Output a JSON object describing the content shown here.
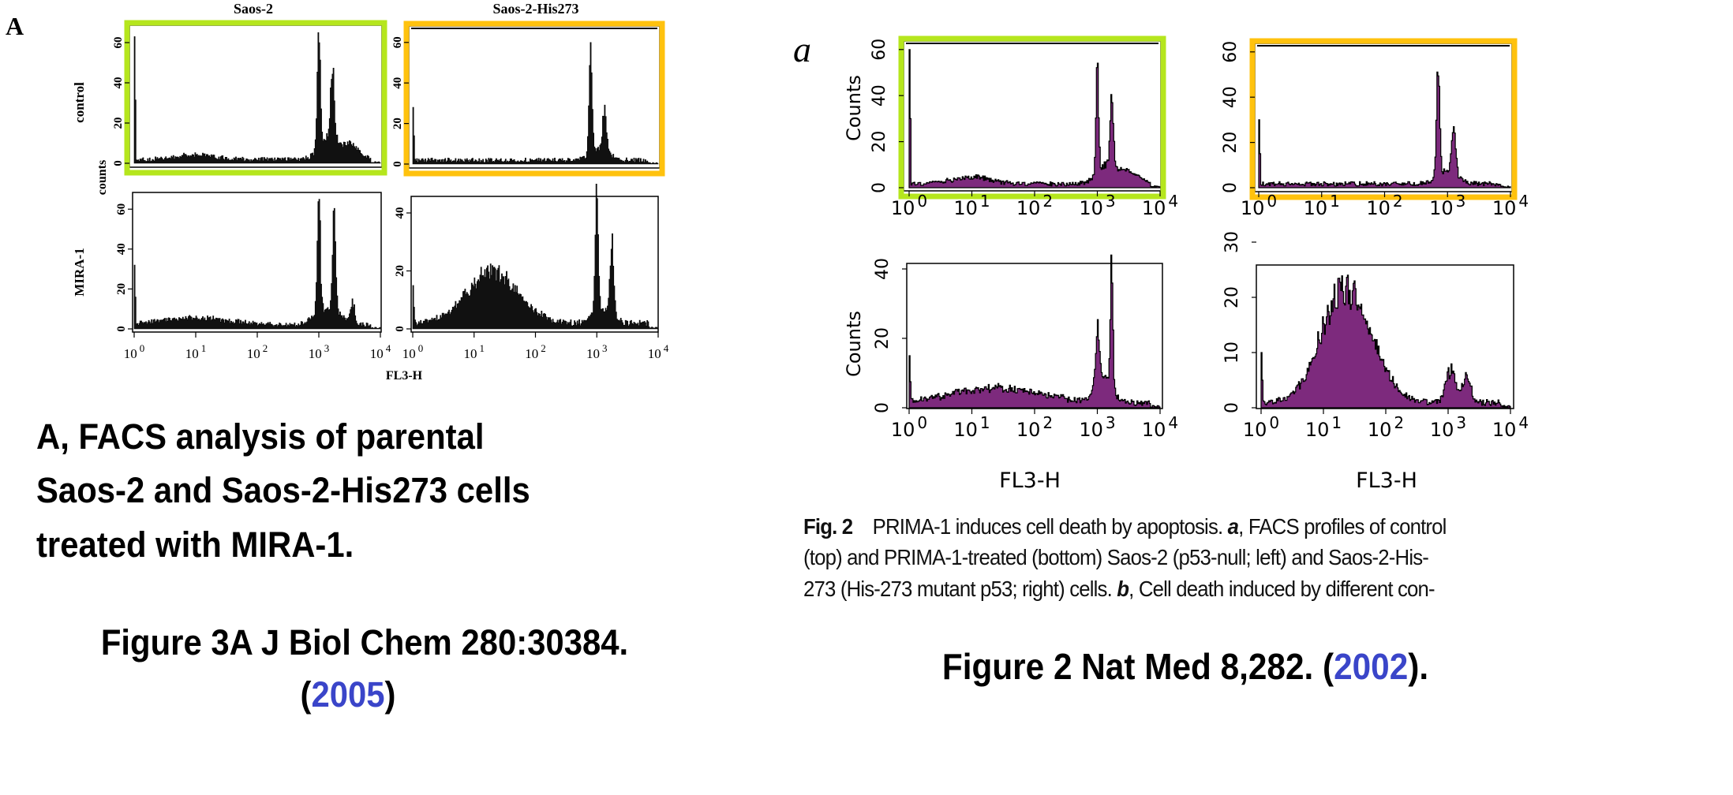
{
  "left_figure": {
    "panel_letter": "A",
    "column_titles": [
      "Saos-2",
      "Saos-2-His273"
    ],
    "row_labels": [
      "control",
      "MIRA-1"
    ],
    "y_axis_label": "counts",
    "x_axis_label": "FL3-H",
    "caption_lines": [
      "A, FACS analysis of parental",
      "Saos-2 and Saos-2-His273 cells",
      "treated with MIRA-1."
    ],
    "reference": {
      "text": "Figure 3A J Biol Chem 280:30384.",
      "open": "(",
      "year": "2005",
      "close": ")"
    }
  },
  "right_figure": {
    "panel_letter": "a",
    "y_axis_label": "Counts",
    "x_axis_label": "FL3-H",
    "caption": {
      "fig_label": "Fig. 2",
      "line1_rest": "PRIMA-1 induces cell death by apoptosis. ",
      "a_label": "a",
      "line1_tail": ", FACS profiles of control",
      "line2": "(top) and PRIMA-1-treated (bottom) Saos-2 (p53-null; left) and Saos-2-His-",
      "line3_head": "273 (His-273 mutant p53; right) cells. ",
      "b_label": "b",
      "line3_tail": ", Cell death induced by different con-"
    },
    "reference": {
      "text": "Figure 2 Nat Med 8,282. (",
      "year": "2002",
      "close": ")."
    }
  },
  "colors": {
    "control_saos2_frame": "#b5e61d",
    "control_his273_frame": "#ffc20e",
    "jbc_fill": "#111111",
    "natmed_fill": "#7d2a7d",
    "year_link": "#3a45c9"
  },
  "chart_data": [
    {
      "id": "A-tl",
      "type": "histogram",
      "title": "Saos-2 control",
      "xscale": "log",
      "xlim": [
        1,
        10000
      ],
      "x_ticks": [
        "0",
        "1",
        "2",
        "3",
        "4"
      ],
      "x_tick_base": "10",
      "show_x_ticks": false,
      "ylim": [
        0,
        65
      ],
      "y_ticks": [
        0,
        20,
        40,
        60
      ],
      "baseline": 2,
      "left_spike": 63,
      "peaks": [
        {
          "log_x": 3.0,
          "count": 60,
          "width": 0.025
        },
        {
          "log_x": 3.22,
          "count": 36,
          "width": 0.03
        },
        {
          "log_x": 3.15,
          "count": 11,
          "width": 0.15
        },
        {
          "log_x": 3.5,
          "count": 7,
          "width": 0.15
        },
        {
          "log_x": 1.0,
          "count": 2.5,
          "width": 0.3
        }
      ]
    },
    {
      "id": "A-tr",
      "type": "histogram",
      "title": "Saos-2-His273 control",
      "xscale": "log",
      "xlim": [
        1,
        10000
      ],
      "x_ticks": [
        "0",
        "1",
        "2",
        "3",
        "4"
      ],
      "x_tick_base": "10",
      "show_x_ticks": false,
      "ylim": [
        0,
        60
      ],
      "y_ticks": [
        0,
        20,
        40,
        60
      ],
      "baseline": 2,
      "left_spike": 28,
      "peaks": [
        {
          "log_x": 2.9,
          "count": 52,
          "width": 0.025
        },
        {
          "log_x": 3.13,
          "count": 21,
          "width": 0.03
        },
        {
          "log_x": 3.05,
          "count": 6,
          "width": 0.15
        }
      ]
    },
    {
      "id": "A-bl",
      "type": "histogram",
      "title": "Saos-2 MIRA-1",
      "xscale": "log",
      "xlim": [
        1,
        10000
      ],
      "x_ticks": [
        "0",
        "1",
        "2",
        "3",
        "4"
      ],
      "x_tick_base": "10",
      "show_x_ticks": true,
      "ylim": [
        0,
        65
      ],
      "y_ticks": [
        0,
        20,
        40,
        60
      ],
      "baseline": 2,
      "left_spike": 32,
      "peaks": [
        {
          "log_x": 3.0,
          "count": 60,
          "width": 0.025
        },
        {
          "log_x": 3.25,
          "count": 54,
          "width": 0.025
        },
        {
          "log_x": 3.15,
          "count": 9,
          "width": 0.2
        },
        {
          "log_x": 3.55,
          "count": 11,
          "width": 0.03
        },
        {
          "log_x": 1.0,
          "count": 3.5,
          "width": 0.6
        }
      ]
    },
    {
      "id": "A-br",
      "type": "histogram",
      "title": "Saos-2-His273 MIRA-1",
      "xscale": "log",
      "xlim": [
        1,
        10000
      ],
      "x_ticks": [
        "0",
        "1",
        "2",
        "3",
        "4"
      ],
      "x_tick_base": "10",
      "show_x_ticks": true,
      "ylim": [
        0,
        50
      ],
      "y_ticks": [
        0,
        20,
        40
      ],
      "baseline": 2,
      "left_spike": 15,
      "peaks": [
        {
          "log_x": 1.3,
          "count": 18,
          "width": 0.42
        },
        {
          "log_x": 3.0,
          "count": 46,
          "width": 0.025
        },
        {
          "log_x": 3.25,
          "count": 25,
          "width": 0.03
        },
        {
          "log_x": 3.1,
          "count": 5,
          "width": 0.15
        }
      ]
    },
    {
      "id": "R-tl",
      "type": "histogram",
      "title": "Saos-2 control",
      "xscale": "log",
      "xlim": [
        1,
        10000
      ],
      "x_ticks": [
        "0",
        "1",
        "2",
        "3",
        "4"
      ],
      "x_tick_base": "10",
      "show_x_ticks": true,
      "ylim": [
        0,
        62
      ],
      "y_ticks": [
        0,
        20,
        40,
        60
      ],
      "baseline": 1.8,
      "left_spike": 60,
      "peaks": [
        {
          "log_x": 3.0,
          "count": 55,
          "width": 0.02
        },
        {
          "log_x": 3.23,
          "count": 33,
          "width": 0.025
        },
        {
          "log_x": 3.15,
          "count": 8,
          "width": 0.15
        },
        {
          "log_x": 3.5,
          "count": 5,
          "width": 0.15
        },
        {
          "log_x": 1.0,
          "count": 3,
          "width": 0.3
        }
      ]
    },
    {
      "id": "R-tr",
      "type": "histogram",
      "title": "Saos-2-His273 control",
      "xscale": "log",
      "xlim": [
        1,
        10000
      ],
      "x_ticks": [
        "0",
        "1",
        "2",
        "3",
        "4"
      ],
      "x_tick_base": "10",
      "show_x_ticks": true,
      "ylim": [
        0,
        62
      ],
      "y_ticks": [
        0,
        20,
        40,
        60
      ],
      "baseline": 1.8,
      "left_spike": 30,
      "peaks": [
        {
          "log_x": 2.85,
          "count": 48,
          "width": 0.025
        },
        {
          "log_x": 3.1,
          "count": 24,
          "width": 0.03
        },
        {
          "log_x": 3.0,
          "count": 6,
          "width": 0.15
        }
      ]
    },
    {
      "id": "R-bl",
      "type": "histogram",
      "title": "Saos-2 PRIMA-1",
      "xscale": "log",
      "xlim": [
        1,
        10000
      ],
      "x_ticks": [
        "0",
        "1",
        "2",
        "3",
        "4"
      ],
      "x_tick_base": "10",
      "show_x_ticks": true,
      "ylim": [
        0,
        44
      ],
      "y_ticks": [
        0,
        20,
        40
      ],
      "baseline": 1.5,
      "left_spike": 15,
      "peaks": [
        {
          "log_x": 3.0,
          "count": 17,
          "width": 0.03
        },
        {
          "log_x": 3.23,
          "count": 38,
          "width": 0.02
        },
        {
          "log_x": 3.1,
          "count": 8,
          "width": 0.12
        },
        {
          "log_x": 1.4,
          "count": 4.5,
          "width": 0.7
        }
      ]
    },
    {
      "id": "R-br",
      "type": "histogram",
      "title": "Saos-2-His273 PRIMA-1",
      "xscale": "log",
      "xlim": [
        1,
        10000
      ],
      "x_ticks": [
        "0",
        "1",
        "2",
        "3",
        "4"
      ],
      "x_tick_base": "10",
      "show_x_ticks": true,
      "ylim": [
        0,
        30
      ],
      "y_ticks": [
        0,
        10,
        20,
        30
      ],
      "baseline": 1,
      "left_spike": 10,
      "peaks": [
        {
          "log_x": 1.35,
          "count": 21,
          "width": 0.38
        },
        {
          "log_x": 3.05,
          "count": 6,
          "width": 0.08
        },
        {
          "log_x": 3.3,
          "count": 5,
          "width": 0.06
        },
        {
          "log_x": 1.9,
          "count": 1.5,
          "width": 0.3
        }
      ]
    }
  ]
}
